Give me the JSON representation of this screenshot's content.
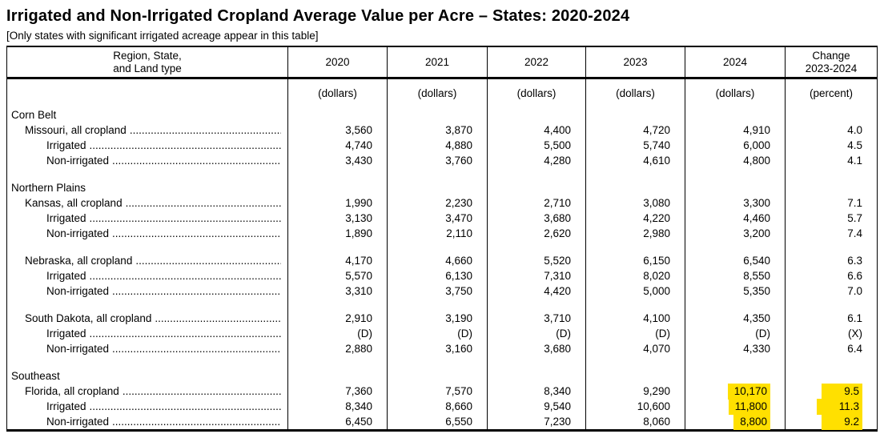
{
  "page": {
    "title": "Irrigated and Non-Irrigated Cropland Average Value per Acre – States: 2020-2024",
    "note": "[Only states with significant irrigated acreage appear in this table]"
  },
  "table": {
    "header": {
      "region": "Region, State,\nand Land type",
      "years": [
        "2020",
        "2021",
        "2022",
        "2023",
        "2024"
      ],
      "change": "Change\n2023-2024",
      "units": [
        "(dollars)",
        "(dollars)",
        "(dollars)",
        "(dollars)",
        "(dollars)",
        "(percent)"
      ]
    },
    "highlight_color": "#ffe000",
    "rows": [
      {
        "type": "group",
        "label": "Corn Belt"
      },
      {
        "type": "data",
        "indent": 1,
        "label": "Missouri, all cropland",
        "values": [
          "3,560",
          "3,870",
          "4,400",
          "4,720",
          "4,910",
          "4.0"
        ]
      },
      {
        "type": "data",
        "indent": 2,
        "label": "Irrigated",
        "values": [
          "4,740",
          "4,880",
          "5,500",
          "5,740",
          "6,000",
          "4.5"
        ]
      },
      {
        "type": "data",
        "indent": 2,
        "label": "Non-irrigated",
        "values": [
          "3,430",
          "3,760",
          "4,280",
          "4,610",
          "4,800",
          "4.1"
        ]
      },
      {
        "type": "spacer"
      },
      {
        "type": "group",
        "label": "Northern Plains"
      },
      {
        "type": "data",
        "indent": 1,
        "label": "Kansas, all cropland",
        "values": [
          "1,990",
          "2,230",
          "2,710",
          "3,080",
          "3,300",
          "7.1"
        ]
      },
      {
        "type": "data",
        "indent": 2,
        "label": "Irrigated",
        "values": [
          "3,130",
          "3,470",
          "3,680",
          "4,220",
          "4,460",
          "5.7"
        ]
      },
      {
        "type": "data",
        "indent": 2,
        "label": "Non-irrigated",
        "values": [
          "1,890",
          "2,110",
          "2,620",
          "2,980",
          "3,200",
          "7.4"
        ]
      },
      {
        "type": "spacer"
      },
      {
        "type": "data",
        "indent": 1,
        "label": "Nebraska, all cropland",
        "values": [
          "4,170",
          "4,660",
          "5,520",
          "6,150",
          "6,540",
          "6.3"
        ]
      },
      {
        "type": "data",
        "indent": 2,
        "label": "Irrigated",
        "values": [
          "5,570",
          "6,130",
          "7,310",
          "8,020",
          "8,550",
          "6.6"
        ]
      },
      {
        "type": "data",
        "indent": 2,
        "label": "Non-irrigated",
        "values": [
          "3,310",
          "3,750",
          "4,420",
          "5,000",
          "5,350",
          "7.0"
        ]
      },
      {
        "type": "spacer"
      },
      {
        "type": "data",
        "indent": 1,
        "label": "South Dakota, all cropland",
        "values": [
          "2,910",
          "3,190",
          "3,710",
          "4,100",
          "4,350",
          "6.1"
        ]
      },
      {
        "type": "data",
        "indent": 2,
        "label": "Irrigated",
        "values": [
          "(D)",
          "(D)",
          "(D)",
          "(D)",
          "(D)",
          "(X)"
        ]
      },
      {
        "type": "data",
        "indent": 2,
        "label": "Non-irrigated",
        "values": [
          "2,880",
          "3,160",
          "3,680",
          "4,070",
          "4,330",
          "6.4"
        ]
      },
      {
        "type": "spacer"
      },
      {
        "type": "group",
        "label": "Southeast"
      },
      {
        "type": "data",
        "indent": 1,
        "label": "Florida, all cropland",
        "values": [
          "7,360",
          "7,570",
          "8,340",
          "9,290",
          "10,170",
          "9.5"
        ],
        "highlight": [
          4,
          5
        ]
      },
      {
        "type": "data",
        "indent": 2,
        "label": "Irrigated",
        "values": [
          "8,340",
          "8,660",
          "9,540",
          "10,600",
          "11,800",
          "11.3"
        ],
        "highlight": [
          4,
          5
        ]
      },
      {
        "type": "data",
        "indent": 2,
        "label": "Non-irrigated",
        "values": [
          "6,450",
          "6,550",
          "7,230",
          "8,060",
          "8,800",
          "9.2"
        ],
        "highlight": [
          4,
          5
        ]
      }
    ]
  }
}
